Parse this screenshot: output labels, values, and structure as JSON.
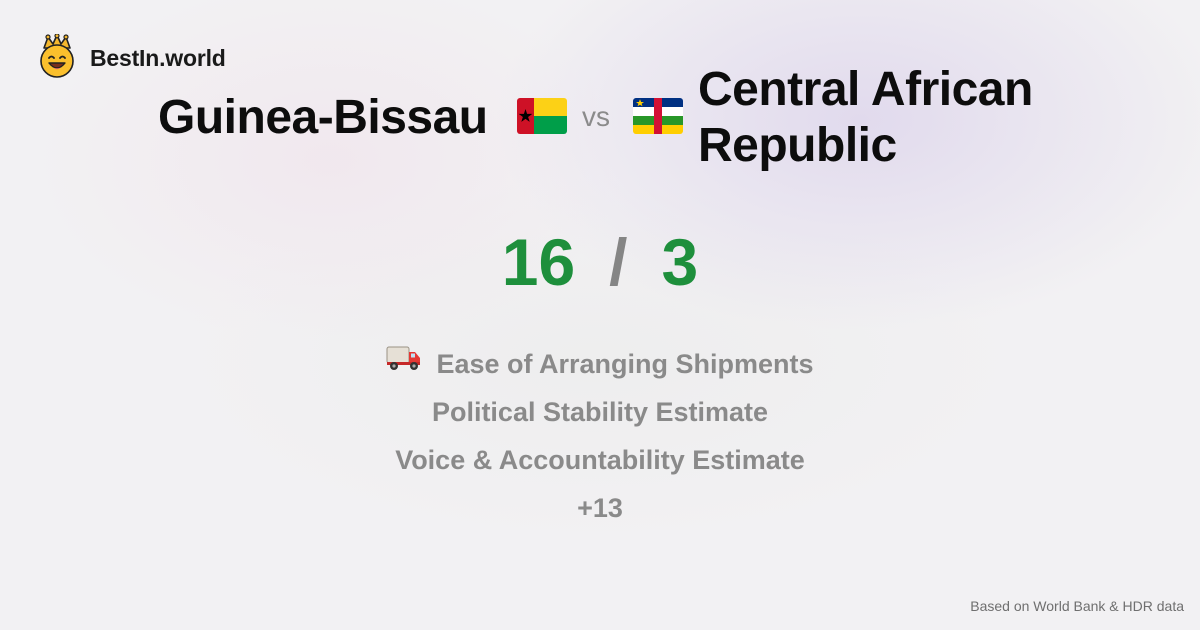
{
  "brand": {
    "name": "BestIn.world",
    "logo_icon": "crowned-smiley-icon"
  },
  "comparison": {
    "left_country": "Guinea-Bissau",
    "left_flag_icon": "guinea-bissau-flag-icon",
    "vs_label": "vs",
    "right_country": "Central African Republic",
    "right_flag_icon": "central-african-republic-flag-icon"
  },
  "score": {
    "left": "16",
    "separator": "/",
    "right": "3",
    "color": "#1e8f3c"
  },
  "metrics": [
    {
      "label": "Ease of Arranging Shipments",
      "icon": "delivery-truck-icon"
    },
    {
      "label": "Political Stability Estimate"
    },
    {
      "label": "Voice & Accountability Estimate"
    },
    {
      "label": "+13"
    }
  ],
  "footer": {
    "source": "Based on World Bank & HDR data"
  }
}
